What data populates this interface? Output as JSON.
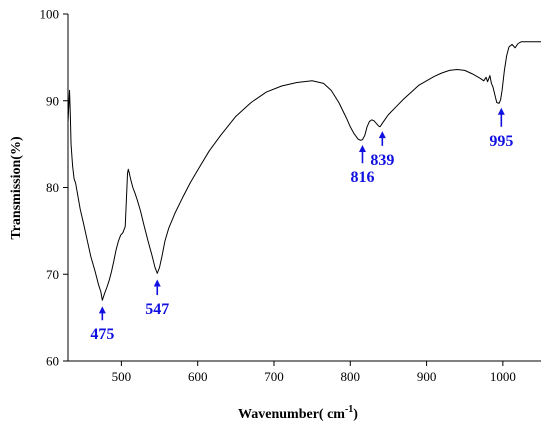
{
  "chart_data": {
    "type": "line",
    "title": "",
    "xlabel": "Wavenumber( cm",
    "xlabel_sup": "-1",
    "xlabel_close": ")",
    "ylabel": "Transmission(%)",
    "xlim": [
      430,
      1050
    ],
    "ylim": [
      60,
      100
    ],
    "x_ticks": [
      500,
      600,
      700,
      800,
      900,
      1000
    ],
    "y_ticks": [
      60,
      70,
      80,
      90,
      100
    ],
    "grid": false,
    "line_color": "#000000",
    "annotation_color": "#1010e0",
    "series": [
      {
        "x": [
          430,
          432,
          433,
          434,
          436,
          438,
          440,
          443,
          446,
          450,
          455,
          460,
          465,
          470,
          473,
          475,
          478,
          481,
          484,
          487,
          490,
          493,
          496,
          499,
          502,
          505,
          507,
          508,
          509,
          510,
          512,
          515,
          518,
          521,
          525,
          530,
          535,
          540,
          544,
          547,
          550,
          553,
          557,
          562,
          570,
          580,
          590,
          600,
          615,
          630,
          650,
          670,
          690,
          710,
          730,
          750,
          765,
          775,
          785,
          795,
          800,
          805,
          810,
          813,
          816,
          819,
          822,
          825,
          828,
          831,
          834,
          837,
          839,
          842,
          846,
          850,
          860,
          870,
          880,
          890,
          900,
          910,
          920,
          930,
          940,
          950,
          960,
          970,
          975,
          978,
          980,
          983,
          985,
          987,
          990,
          992,
          995,
          997,
          999,
          1002,
          1005,
          1008,
          1012,
          1016,
          1020,
          1024,
          1030,
          1040,
          1050
        ],
        "y": [
          87.5,
          91.2,
          88.5,
          85.0,
          82.5,
          81.0,
          80.5,
          79.0,
          77.5,
          76.0,
          74.0,
          72.0,
          70.5,
          68.8,
          68.0,
          67.0,
          67.8,
          68.5,
          69.3,
          70.3,
          71.5,
          72.8,
          73.8,
          74.5,
          74.8,
          75.5,
          79.5,
          81.6,
          82.1,
          81.8,
          81.0,
          80.0,
          79.3,
          78.5,
          77.3,
          75.5,
          73.8,
          72.2,
          70.8,
          70.1,
          70.8,
          72.0,
          73.8,
          75.3,
          77.0,
          78.8,
          80.5,
          82.0,
          84.2,
          86.0,
          88.2,
          89.8,
          91.0,
          91.7,
          92.1,
          92.3,
          92.0,
          91.2,
          89.8,
          88.0,
          87.0,
          86.2,
          85.6,
          85.45,
          85.5,
          86.0,
          87.0,
          87.6,
          87.8,
          87.7,
          87.4,
          87.1,
          87.0,
          87.4,
          87.9,
          88.4,
          89.3,
          90.2,
          91.0,
          91.8,
          92.3,
          92.8,
          93.2,
          93.5,
          93.6,
          93.5,
          93.1,
          92.6,
          92.3,
          92.7,
          92.2,
          92.9,
          92.0,
          91.6,
          90.5,
          89.8,
          89.7,
          90.1,
          91.2,
          93.5,
          95.2,
          96.2,
          96.5,
          96.1,
          96.6,
          96.8,
          96.8,
          96.8,
          96.8
        ]
      }
    ],
    "annotations": [
      {
        "label": "475",
        "x": 475,
        "y_tip": 66.3,
        "y_tail": 64.7,
        "label_side": "below"
      },
      {
        "label": "547",
        "x": 547,
        "y_tip": 69.4,
        "y_tail": 67.6,
        "label_side": "below"
      },
      {
        "label": "816",
        "x": 816,
        "y_tip": 84.9,
        "y_tail": 82.8,
        "label_side": "below"
      },
      {
        "label": "839",
        "x": 842,
        "y_tip": 86.5,
        "y_tail": 84.8,
        "label_side": "below"
      },
      {
        "label": "995",
        "x": 998,
        "y_tip": 89.2,
        "y_tail": 87.0,
        "label_side": "below"
      }
    ]
  }
}
